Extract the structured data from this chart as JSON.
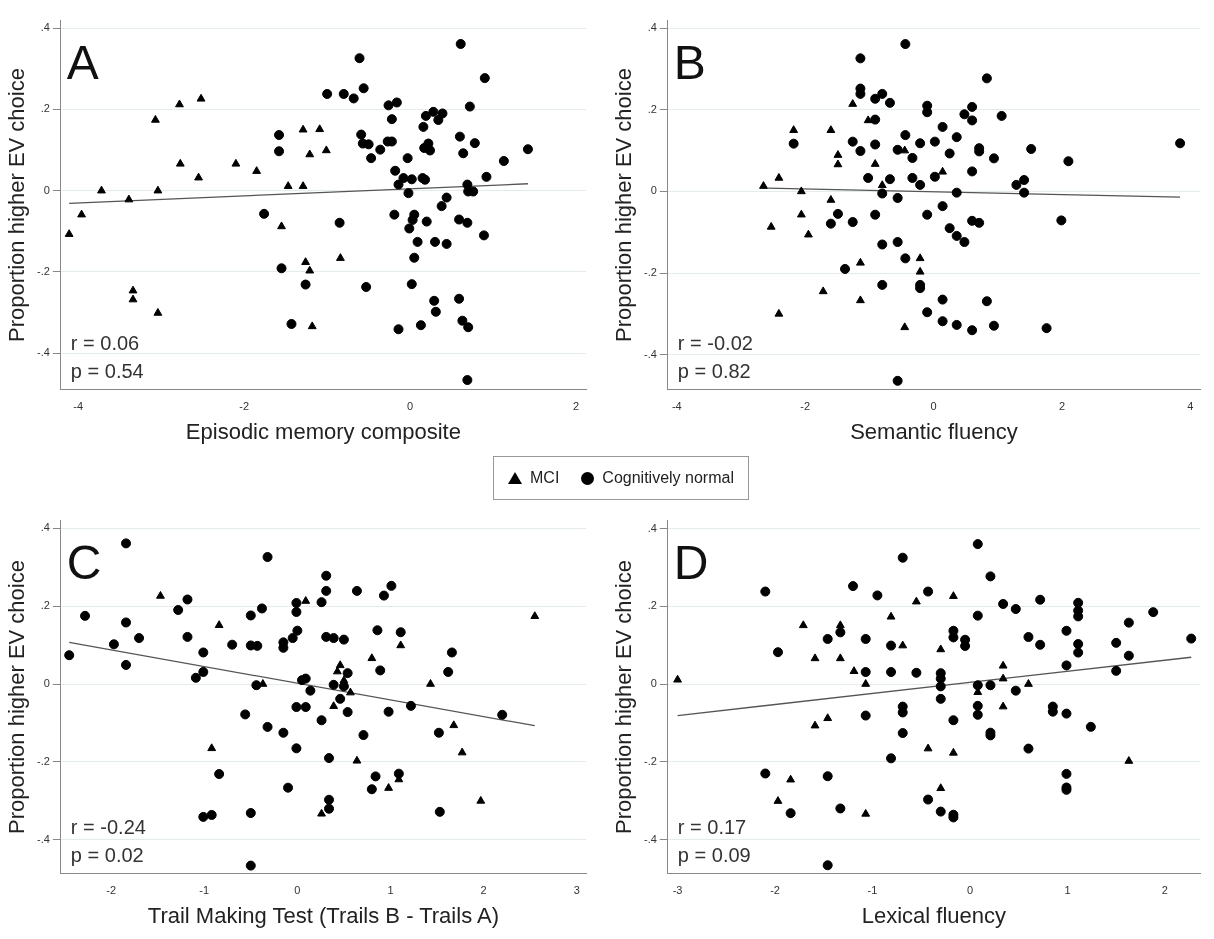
{
  "chart_data": [
    {
      "type": "scatter",
      "title": "A",
      "xlabel": "Episodic memory composite",
      "ylabel": "Proportion higher EV choice",
      "xlim": [
        -4.21,
        2.12
      ],
      "xticks": [
        -4,
        -2,
        0,
        2
      ],
      "ylim": [
        -0.49,
        0.42
      ],
      "yticks": [
        {
          "value": -0.4,
          "label": "-.4"
        },
        {
          "value": -0.2,
          "label": "-.2"
        },
        {
          "value": 0,
          "label": "0"
        },
        {
          "value": 0.2,
          "label": ".2"
        },
        {
          "value": 0.4,
          "label": ".4"
        }
      ],
      "grid": "y",
      "legend": "bottom",
      "annotations": [
        "r = 0.06",
        "p = 0.54"
      ],
      "series": [
        {
          "name": "MCI",
          "color": "#000000",
          "marker": "triangle",
          "x": [
            -4.11,
            -3.96,
            -3.72,
            -3.39,
            -3.34,
            -3.34,
            -3.04,
            -3.07,
            -3.04,
            -2.78,
            -2.77,
            -2.55,
            -2.52,
            -2.1,
            -1.85,
            -1.55,
            -1.47,
            -1.29,
            -1.29,
            -1.09,
            -1.21,
            -1.01,
            -1.26,
            -1.21,
            -1.18,
            -0.84
          ],
          "values": [
            -0.107,
            -0.059,
            0,
            -0.022,
            -0.246,
            -0.268,
            -0.301,
            0.174,
            0,
            0.212,
            0.066,
            0.032,
            0.226,
            0.066,
            0.048,
            -0.088,
            0.011,
            0.15,
            0.011,
            0.151,
            0.089,
            0.099,
            -0.176,
            -0.197,
            -0.334,
            -0.166
          ]
        },
        {
          "name": "Cognitively normal",
          "color": "#000000",
          "marker": "circle",
          "x": [
            -0.61,
            0.61,
            0.9,
            -1,
            -0.8,
            -0.68,
            -0.56,
            -0.26,
            -0.16,
            -0.22,
            0.72,
            0.19,
            0.28,
            0.39,
            0.34,
            0.16,
            -1.58,
            -1.58,
            -0.59,
            -0.57,
            -0.5,
            -0.36,
            -0.27,
            -0.22,
            -0.47,
            -0.03,
            0.17,
            0.22,
            0.24,
            0.6,
            0.64,
            0.78,
            1.13,
            1.42,
            -0.18,
            -0.08,
            0.02,
            0.15,
            0.18,
            -0.14,
            0.92,
            0.69,
            0.7,
            0.76,
            -0.02,
            0.44,
            0.38,
            -1.76,
            -0.19,
            0.05,
            0.03,
            -0.01,
            0.2,
            0.59,
            0.69,
            -0.85,
            0.09,
            0.3,
            0.44,
            0.89,
            0.05,
            -1.55,
            -1.26,
            -0.53,
            0.02,
            0.29,
            0.31,
            0.59,
            0.63,
            0.7,
            -1.43,
            -0.14,
            0.13,
            0.69
          ],
          "values": [
            0.326,
            0.361,
            0.277,
            0.238,
            0.238,
            0.227,
            0.252,
            0.21,
            0.217,
            0.176,
            0.207,
            0.184,
            0.194,
            0.19,
            0.174,
            0.157,
            0.137,
            0.097,
            0.138,
            0.116,
            0.114,
            0.101,
            0.121,
            0.121,
            0.08,
            0.08,
            0.105,
            0.116,
            0.099,
            0.133,
            0.092,
            0.117,
            0.073,
            0.102,
            0.049,
            0.031,
            0.028,
            0.031,
            0.027,
            0.015,
            0.034,
            0.015,
            -0.002,
            -0.002,
            -0.006,
            -0.017,
            -0.038,
            -0.057,
            -0.059,
            -0.059,
            -0.072,
            -0.093,
            -0.076,
            -0.071,
            -0.079,
            -0.079,
            -0.126,
            -0.126,
            -0.131,
            -0.11,
            -0.165,
            -0.191,
            -0.231,
            -0.237,
            -0.23,
            -0.271,
            -0.298,
            -0.266,
            -0.32,
            -0.336,
            -0.328,
            -0.341,
            -0.331,
            -0.466
          ]
        },
        {
          "type": "line",
          "color": "#555555",
          "marker": "none",
          "x": [
            -4.11,
            1.42
          ],
          "values": [
            -0.031,
            0.017
          ]
        }
      ]
    },
    {
      "type": "scatter",
      "title": "B",
      "xlabel": "Semantic fluency",
      "ylabel": "Proportion higher EV choice",
      "xlim": [
        -4.14,
        4.15
      ],
      "xticks": [
        -4,
        -2,
        0,
        2,
        4
      ],
      "ylim": [
        -0.486,
        0.42
      ],
      "yticks": [
        {
          "value": -0.4,
          "label": "-.4"
        },
        {
          "value": -0.2,
          "label": "-.2"
        },
        {
          "value": 0,
          "label": "0"
        },
        {
          "value": 0.2,
          "label": ".2"
        },
        {
          "value": 0.4,
          "label": ".4"
        }
      ],
      "grid": "y",
      "annotations": [
        "r = -0.02",
        "p = 0.82"
      ],
      "series": [
        {
          "name": "MCI",
          "color": "#000000",
          "marker": "triangle",
          "x": [
            -2.65,
            -2.41,
            -2.53,
            -2.41,
            -2.18,
            -2.06,
            -2.06,
            -1.95,
            -1.72,
            -1.6,
            -1.6,
            -1.49,
            -1.49,
            -1.26,
            -1.14,
            -1.14,
            -1.02,
            -0.91,
            -0.8,
            -0.45,
            -0.45,
            -0.21,
            -0.21,
            0.14
          ],
          "values": [
            0.013,
            0.033,
            -0.087,
            -0.3,
            0.15,
            0,
            -0.057,
            -0.106,
            -0.245,
            0.15,
            -0.021,
            0.089,
            0.066,
            0.214,
            -0.175,
            -0.267,
            0.174,
            0.067,
            0.015,
            0.1,
            -0.333,
            -0.164,
            -0.197,
            0.048
          ]
        },
        {
          "name": "Cognitively normal",
          "color": "#000000",
          "marker": "circle",
          "x": [
            -0.44,
            -1.14,
            0.83,
            -1.14,
            -1.14,
            -0.91,
            -0.8,
            -0.68,
            -0.1,
            -0.1,
            0.6,
            0.48,
            0.6,
            1.06,
            -0.91,
            0.14,
            -0.44,
            0.36,
            -2.18,
            -1.26,
            -0.91,
            -0.21,
            0.02,
            -1.14,
            -0.56,
            -0.33,
            0.25,
            0.71,
            0.71,
            0.94,
            1.52,
            2.1,
            3.84,
            -1.02,
            -0.68,
            -0.33,
            0.02,
            -0.21,
            0.6,
            1.29,
            1.41,
            -0.8,
            0.36,
            1.41,
            -0.56,
            -1.49,
            -1.6,
            -1.26,
            -0.91,
            -0.1,
            0.14,
            0.6,
            0.71,
            1.99,
            0.25,
            0.36,
            0.48,
            -0.8,
            -0.56,
            -0.44,
            -1.38,
            -0.8,
            -0.21,
            -0.21,
            0.14,
            0.83,
            -0.1,
            0.14,
            0.36,
            0.6,
            0.94,
            1.76,
            -0.56
          ],
          "values": [
            0.361,
            0.326,
            0.277,
            0.252,
            0.239,
            0.227,
            0.239,
            0.217,
            0.21,
            0.194,
            0.207,
            0.189,
            0.174,
            0.185,
            0.176,
            0.158,
            0.138,
            0.133,
            0.117,
            0.122,
            0.115,
            0.118,
            0.122,
            0.099,
            0.102,
            0.082,
            0.093,
            0.106,
            0.098,
            0.081,
            0.104,
            0.074,
            0.118,
            0.033,
            0.03,
            0.033,
            0.036,
            0.016,
            0.049,
            0.016,
            0.028,
            -0.005,
            -0.003,
            -0.003,
            -0.016,
            -0.055,
            -0.079,
            -0.075,
            -0.057,
            -0.057,
            -0.036,
            -0.072,
            -0.077,
            -0.071,
            -0.09,
            -0.109,
            -0.124,
            -0.13,
            -0.124,
            -0.164,
            -0.19,
            -0.229,
            -0.229,
            -0.237,
            -0.265,
            -0.269,
            -0.296,
            -0.318,
            -0.327,
            -0.34,
            -0.329,
            -0.335,
            -0.464
          ]
        },
        {
          "type": "line",
          "color": "#555555",
          "marker": "none",
          "x": [
            -2.59,
            3.84
          ],
          "values": [
            0.008,
            -0.014
          ]
        }
      ]
    },
    {
      "type": "scatter",
      "title": "C",
      "xlabel": "Trail Making Test (Trails B - Trails A)",
      "ylabel": "Proportion higher EV choice",
      "xlim": [
        -2.54,
        3.1
      ],
      "xticks": [
        -2,
        -1,
        0,
        1,
        2,
        3
      ],
      "ylim": [
        -0.487,
        0.421
      ],
      "yticks": [
        {
          "value": -0.4,
          "label": "-.4"
        },
        {
          "value": -0.2,
          "label": "-.2"
        },
        {
          "value": 0,
          "label": "0"
        },
        {
          "value": 0.2,
          "label": ".2"
        },
        {
          "value": 0.4,
          "label": ".4"
        }
      ],
      "grid": "y",
      "annotations": [
        "r = -0.24",
        "p = 0.02"
      ],
      "series": [
        {
          "name": "MCI",
          "color": "#000000",
          "marker": "triangle",
          "x": [
            -1.47,
            -0.84,
            -0.92,
            -0.37,
            0.09,
            0.46,
            0.43,
            0.5,
            0.57,
            0.39,
            0.64,
            0.26,
            0.8,
            1.11,
            1.43,
            1.68,
            1.77,
            0.98,
            1.09,
            1.97,
            2.55
          ],
          "values": [
            0.226,
            0.151,
            -0.165,
            0,
            0.213,
            0.048,
            0.032,
            0.009,
            -0.022,
            -0.057,
            -0.197,
            -0.333,
            0.066,
            0.099,
            0,
            -0.106,
            -0.176,
            -0.267,
            -0.245,
            -0.3,
            0.174
          ]
        },
        {
          "name": "Cognitively normal",
          "color": "#000000",
          "marker": "circle",
          "x": [
            -1.84,
            -0.32,
            0.31,
            0.31,
            1.01,
            0.64,
            0.93,
            -1.18,
            0.26,
            -0.01,
            -2.28,
            -1.28,
            -0.38,
            -0.5,
            -0.01,
            -1.84,
            -1.7,
            -1.18,
            -1.97,
            -0.7,
            -0.5,
            -0.43,
            -0.15,
            -0.15,
            -0.05,
            0,
            0.31,
            0.39,
            0.5,
            0.86,
            1.11,
            1.66,
            -2.45,
            -1.84,
            -1.01,
            -1.01,
            -1.09,
            0.89,
            1.62,
            0.54,
            0.09,
            0.05,
            -0.44,
            0.39,
            0.5,
            0.14,
            0.46,
            1.22,
            -0.01,
            0.09,
            0.54,
            0.98,
            -0.56,
            2.2,
            0.26,
            -0.32,
            -0.15,
            0.71,
            1.52,
            -0.01,
            0.34,
            -0.84,
            0.84,
            1.09,
            -0.1,
            0.8,
            0.34,
            0.34,
            -0.5,
            -1.01,
            -0.92,
            1.53,
            -0.5
          ],
          "values": [
            0.361,
            0.326,
            0.278,
            0.239,
            0.252,
            0.239,
            0.227,
            0.217,
            0.21,
            0.208,
            0.175,
            0.19,
            0.194,
            0.176,
            0.185,
            0.158,
            0.118,
            0.121,
            0.102,
            0.101,
            0.099,
            0.098,
            0.107,
            0.093,
            0.118,
            0.137,
            0.121,
            0.118,
            0.114,
            0.138,
            0.133,
            0.081,
            0.074,
            0.049,
            0.081,
            0.031,
            0.016,
            0.035,
            0.031,
            0.028,
            0.014,
            0.01,
            -0.003,
            -0.002,
            -0.006,
            -0.017,
            -0.038,
            -0.056,
            -0.059,
            -0.059,
            -0.072,
            -0.071,
            -0.078,
            -0.079,
            -0.093,
            -0.11,
            -0.125,
            -0.131,
            -0.125,
            -0.165,
            -0.19,
            -0.231,
            -0.237,
            -0.23,
            -0.266,
            -0.27,
            -0.297,
            -0.32,
            -0.331,
            -0.341,
            -0.336,
            -0.328,
            -0.466
          ]
        },
        {
          "type": "line",
          "color": "#555555",
          "marker": "none",
          "x": [
            -2.45,
            2.55
          ],
          "values": [
            0.107,
            -0.107
          ]
        }
      ]
    },
    {
      "type": "scatter",
      "title": "D",
      "xlabel": "Lexical fluency",
      "ylabel": "Proportion higher EV choice",
      "xlim": [
        -3.1,
        2.36
      ],
      "xticks": [
        -3,
        -2,
        -1,
        0,
        1,
        2
      ],
      "ylim": [
        -0.488,
        0.422
      ],
      "yticks": [
        {
          "value": -0.4,
          "label": "-.4"
        },
        {
          "value": -0.2,
          "label": "-.2"
        },
        {
          "value": 0,
          "label": "0"
        },
        {
          "value": 0.2,
          "label": ".2"
        },
        {
          "value": 0.4,
          "label": ".4"
        }
      ],
      "grid": "y",
      "annotations": [
        "r = 0.17",
        "p = 0.09"
      ],
      "series": [
        {
          "name": "MCI",
          "color": "#000000",
          "marker": "triangle",
          "x": [
            -3,
            -1.71,
            -1.59,
            -1.59,
            -1.46,
            -1.84,
            -1.97,
            -1.33,
            -1.33,
            -1.19,
            -1.07,
            -1.07,
            -0.81,
            -0.69,
            -0.55,
            -0.43,
            -0.3,
            -0.3,
            -0.17,
            -0.17,
            0.08,
            0.34,
            0.34,
            0.34,
            0.6,
            1.63
          ],
          "values": [
            0.011,
            0.151,
            0.066,
            -0.107,
            -0.088,
            -0.246,
            -0.301,
            0.066,
            0.151,
            0.033,
            0,
            -0.334,
            0.173,
            0.099,
            0.212,
            -0.166,
            0.089,
            -0.268,
            0.226,
            -0.177,
            -0.021,
            0.047,
            0.014,
            -0.058,
            0,
            -0.198
          ]
        },
        {
          "name": "Cognitively normal",
          "color": "#000000",
          "marker": "circle",
          "x": [
            0.08,
            -0.69,
            0.21,
            -1.2,
            -2.1,
            -0.95,
            -0.43,
            0.72,
            0.34,
            0.47,
            1.11,
            1.11,
            1.11,
            1.88,
            0.08,
            1.63,
            0.99,
            -0.17,
            -0.17,
            -0.05,
            -0.05,
            0.6,
            0.72,
            1.11,
            1.11,
            1.5,
            2.27,
            1.63,
            -1.46,
            -1.33,
            -1.07,
            -0.81,
            -1.97,
            0.99,
            1.5,
            -1.07,
            -0.81,
            -0.55,
            -0.3,
            -0.3,
            -0.3,
            0.08,
            0.21,
            0.47,
            -0.3,
            -0.69,
            -0.69,
            0.08,
            0.08,
            0.85,
            0.85,
            0.99,
            -1.07,
            -0.17,
            1.24,
            -0.69,
            0.21,
            0.21,
            0.6,
            -0.81,
            -2.1,
            -1.46,
            0.99,
            0.99,
            0.99,
            -0.43,
            -1.33,
            -0.3,
            -0.17,
            -0.17,
            -1.84,
            -1.46
          ],
          "values": [
            0.36,
            0.325,
            0.277,
            0.252,
            0.238,
            0.228,
            0.238,
            0.217,
            0.206,
            0.193,
            0.209,
            0.189,
            0.174,
            0.185,
            0.176,
            0.158,
            0.137,
            0.137,
            0.12,
            0.114,
            0.098,
            0.121,
            0.101,
            0.103,
            0.081,
            0.106,
            0.117,
            0.073,
            0.116,
            0.133,
            0.116,
            0.099,
            0.082,
            0.048,
            0.034,
            0.031,
            0.031,
            0.029,
            0.028,
            0.014,
            -0.006,
            -0.003,
            -0.003,
            -0.017,
            -0.038,
            -0.058,
            -0.073,
            -0.056,
            -0.079,
            -0.058,
            -0.071,
            -0.076,
            -0.081,
            -0.093,
            -0.11,
            -0.126,
            -0.125,
            -0.132,
            -0.166,
            -0.191,
            -0.23,
            -0.237,
            -0.231,
            -0.266,
            -0.272,
            -0.297,
            -0.32,
            -0.328,
            -0.336,
            -0.343,
            -0.332,
            -0.466
          ]
        },
        {
          "type": "line",
          "color": "#555555",
          "marker": "none",
          "x": [
            -3,
            2.27
          ],
          "values": [
            -0.081,
            0.069
          ]
        }
      ]
    }
  ]
}
